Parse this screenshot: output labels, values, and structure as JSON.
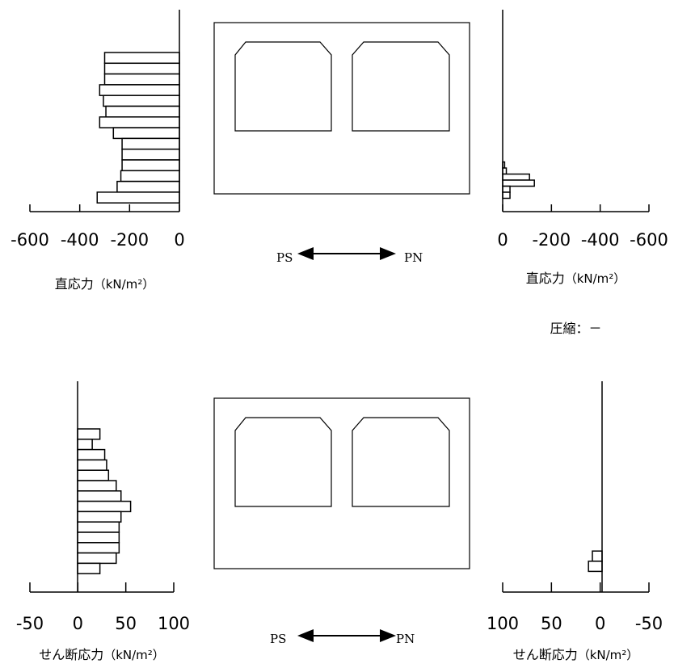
{
  "chart_data": [
    {
      "type": "bar",
      "orientation": "horizontal",
      "position": "top-left",
      "xlabel_text": "直応力",
      "xlabel_unit": "（kN/m²）",
      "ticks": [
        "-600",
        "-400",
        "-200",
        "0"
      ],
      "xlim": [
        -600,
        0
      ],
      "values": [
        -300,
        -300,
        -300,
        -320,
        -305,
        -295,
        -320,
        -265,
        -230,
        -230,
        -230,
        -235,
        -250,
        -330
      ]
    },
    {
      "type": "bar",
      "orientation": "horizontal",
      "position": "top-right",
      "xlabel_text": "直応力",
      "xlabel_unit": "（kN/m²）",
      "note": "圧縮：－",
      "ticks": [
        "0",
        "-200",
        "-400",
        "-600"
      ],
      "xlim": [
        0,
        -600
      ],
      "values": [
        0,
        0,
        0,
        0,
        0,
        0,
        0,
        -8,
        -15,
        -110,
        -130,
        -30,
        -30
      ]
    },
    {
      "type": "bar",
      "orientation": "horizontal",
      "position": "bottom-left",
      "xlabel_text": "せん断応力",
      "xlabel_unit": "（kN/m²）",
      "ticks": [
        "-50",
        "0",
        "50",
        "100"
      ],
      "xlim": [
        -50,
        100
      ],
      "values": [
        23,
        15,
        28,
        30,
        32,
        40,
        45,
        55,
        45,
        43,
        43,
        43,
        40,
        23
      ]
    },
    {
      "type": "bar",
      "orientation": "horizontal",
      "position": "bottom-right",
      "xlabel_text": "せん断応力",
      "xlabel_unit": "（kN/m²）",
      "ticks": [
        "100",
        "50",
        "0",
        "-50"
      ],
      "xlim": [
        100,
        -50
      ],
      "values": [
        0,
        0,
        0,
        0,
        0,
        0,
        0,
        0,
        0,
        0,
        0,
        0,
        8,
        12
      ]
    }
  ],
  "direction_labels": {
    "left": "PS",
    "right": "PN"
  }
}
